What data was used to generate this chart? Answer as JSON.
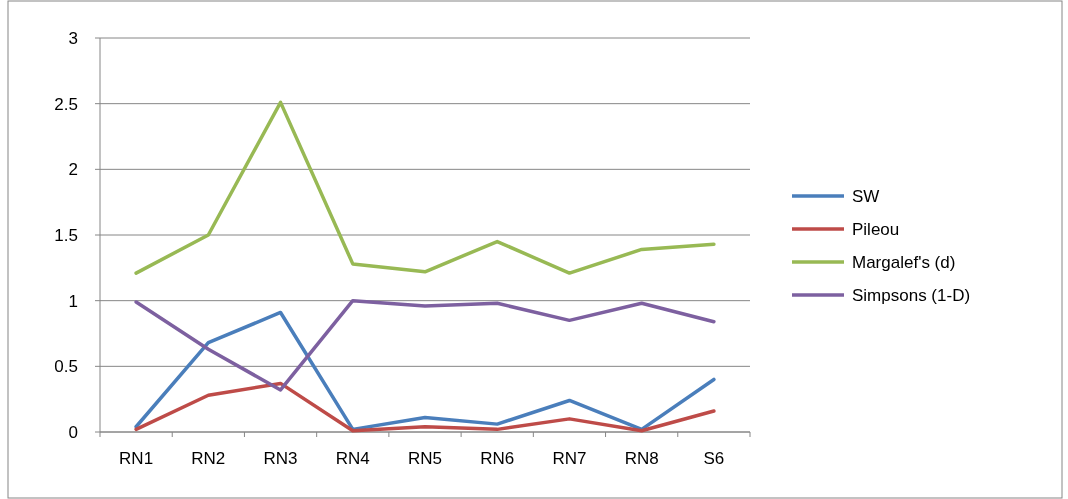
{
  "chart_data": {
    "type": "line",
    "categories": [
      "RN1",
      "RN2",
      "RN3",
      "RN4",
      "RN5",
      "RN6",
      "RN7",
      "RN8",
      "S6"
    ],
    "series": [
      {
        "name": "SW",
        "color": "#4a7ebb",
        "values": [
          0.04,
          0.68,
          0.91,
          0.02,
          0.11,
          0.06,
          0.24,
          0.02,
          0.4
        ]
      },
      {
        "name": "Pileou",
        "color": "#be4b48",
        "values": [
          0.02,
          0.28,
          0.37,
          0.01,
          0.04,
          0.02,
          0.1,
          0.01,
          0.16
        ]
      },
      {
        "name": "Margalef's (d)",
        "color": "#98b954",
        "values": [
          1.21,
          1.5,
          2.51,
          1.28,
          1.22,
          1.45,
          1.21,
          1.39,
          1.43
        ]
      },
      {
        "name": "Simpsons (1-D)",
        "color": "#7d60a0",
        "values": [
          0.99,
          0.63,
          0.32,
          1.0,
          0.96,
          0.98,
          0.85,
          0.98,
          0.84
        ]
      }
    ],
    "ylim": [
      0,
      3
    ],
    "yticks": [
      0,
      0.5,
      1,
      1.5,
      2,
      2.5,
      3
    ],
    "grid": "y",
    "legend": "right",
    "marker": "none",
    "line_style": "solid"
  }
}
